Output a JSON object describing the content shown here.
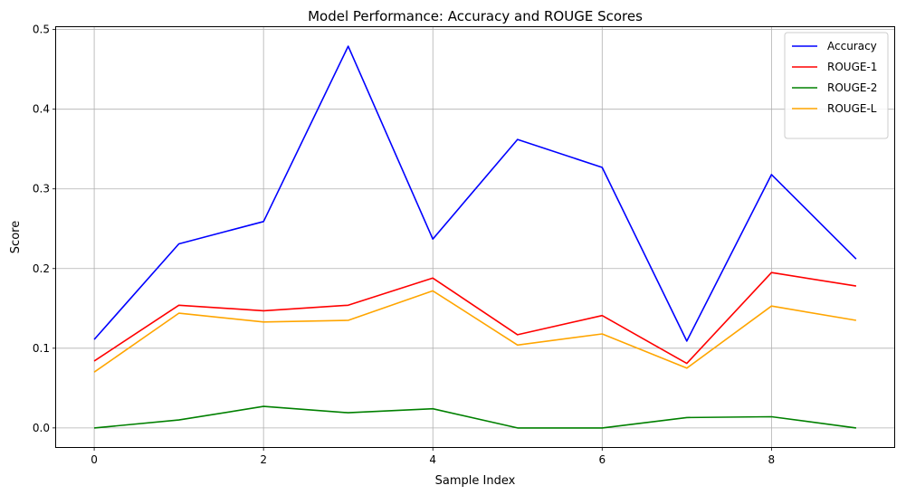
{
  "chart_data": {
    "type": "line",
    "title": "Model Performance: Accuracy and ROUGE Scores",
    "xlabel": "Sample Index",
    "ylabel": "Score",
    "xlim": [
      -0.45,
      9.45
    ],
    "ylim": [
      -0.024,
      0.503
    ],
    "x": [
      0,
      1,
      2,
      3,
      4,
      5,
      6,
      7,
      8,
      9
    ],
    "x_ticks": [
      0,
      2,
      4,
      6,
      8
    ],
    "y_ticks": [
      0.0,
      0.1,
      0.2,
      0.3,
      0.4,
      0.5
    ],
    "grid": true,
    "legend_position": "top-right",
    "series": [
      {
        "name": "Accuracy",
        "color": "#0000ff",
        "values": [
          0.111,
          0.231,
          0.259,
          0.479,
          0.237,
          0.362,
          0.327,
          0.109,
          0.318,
          0.212
        ]
      },
      {
        "name": "ROUGE-1",
        "color": "#ff0000",
        "values": [
          0.084,
          0.154,
          0.147,
          0.154,
          0.188,
          0.117,
          0.141,
          0.081,
          0.195,
          0.178
        ]
      },
      {
        "name": "ROUGE-2",
        "color": "#008000",
        "values": [
          0.0,
          0.01,
          0.027,
          0.019,
          0.024,
          0.0,
          0.0,
          0.013,
          0.014,
          0.0
        ]
      },
      {
        "name": "ROUGE-L",
        "color": "#ffa500",
        "values": [
          0.07,
          0.144,
          0.133,
          0.135,
          0.172,
          0.104,
          0.118,
          0.075,
          0.153,
          0.135
        ]
      }
    ]
  }
}
